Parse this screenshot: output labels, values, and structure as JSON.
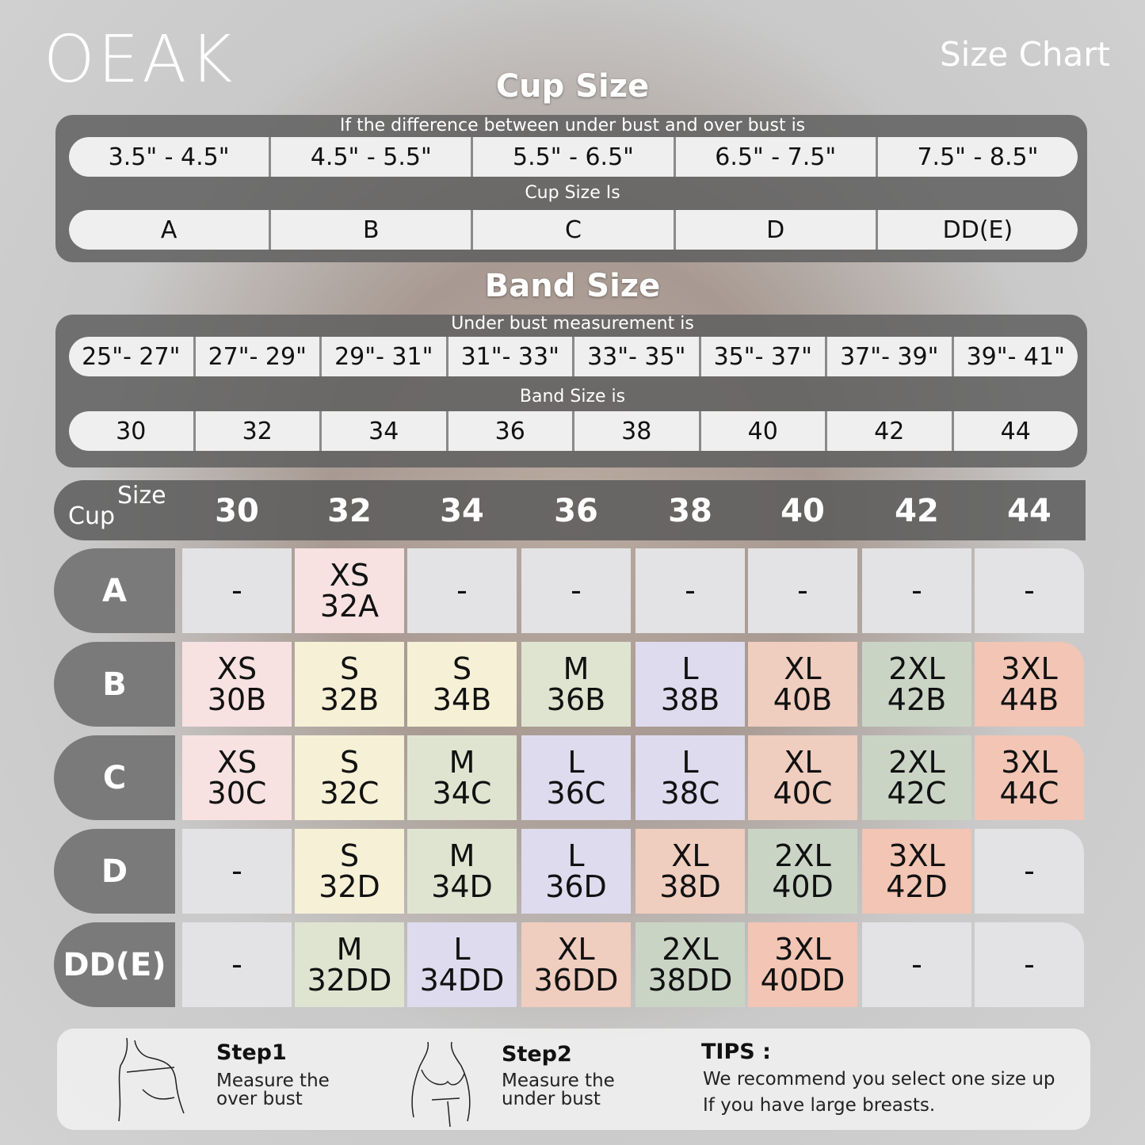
{
  "brand": "OEAK",
  "title": "Size Chart",
  "cup_section": {
    "heading": "Cup Size",
    "caption1": "If the  difference between under bust and over bust is",
    "differences": [
      "3.5\" -  4.5\"",
      "4.5\" -  5.5\"",
      "5.5\" -  6.5\"",
      "6.5\" -  7.5\"",
      "7.5\" -  8.5\""
    ],
    "caption2": "Cup Size Is",
    "cups": [
      "A",
      "B",
      "C",
      "D",
      "DD(E)"
    ]
  },
  "band_section": {
    "heading": "Band Size",
    "caption1": "Under bust measurement is",
    "measurements": [
      "25\"- 27\"",
      "27\"- 29\"",
      "29\"- 31\"",
      "31\"- 33\"",
      "33\"- 35\"",
      "35\"- 37\"",
      "37\"- 39\"",
      "39\"- 41\""
    ],
    "caption2": "Band Size is",
    "bands": [
      "30",
      "32",
      "34",
      "36",
      "38",
      "40",
      "42",
      "44"
    ]
  },
  "grid": {
    "corner_size": "Size",
    "corner_cup": "Cup",
    "columns": [
      "30",
      "32",
      "34",
      "36",
      "38",
      "40",
      "42",
      "44"
    ],
    "rows": [
      {
        "cup": "A",
        "cells": [
          [
            "-",
            ""
          ],
          [
            "XS",
            "32A"
          ],
          [
            "-",
            ""
          ],
          [
            "-",
            ""
          ],
          [
            "-",
            ""
          ],
          [
            "-",
            ""
          ],
          [
            "-",
            ""
          ],
          [
            "-",
            ""
          ]
        ]
      },
      {
        "cup": "B",
        "cells": [
          [
            "XS",
            "30B"
          ],
          [
            "S",
            "32B"
          ],
          [
            "S",
            "34B"
          ],
          [
            "M",
            "36B"
          ],
          [
            "L",
            "38B"
          ],
          [
            "XL",
            "40B"
          ],
          [
            "2XL",
            "42B"
          ],
          [
            "3XL",
            "44B"
          ]
        ]
      },
      {
        "cup": "C",
        "cells": [
          [
            "XS",
            "30C"
          ],
          [
            "S",
            "32C"
          ],
          [
            "M",
            "34C"
          ],
          [
            "L",
            "36C"
          ],
          [
            "L",
            "38C"
          ],
          [
            "XL",
            "40C"
          ],
          [
            "2XL",
            "42C"
          ],
          [
            "3XL",
            "44C"
          ]
        ]
      },
      {
        "cup": "D",
        "cells": [
          [
            "-",
            ""
          ],
          [
            "S",
            "32D"
          ],
          [
            "M",
            "34D"
          ],
          [
            "L",
            "36D"
          ],
          [
            "XL",
            "38D"
          ],
          [
            "2XL",
            "40D"
          ],
          [
            "3XL",
            "42D"
          ],
          [
            "-",
            ""
          ]
        ]
      },
      {
        "cup": "DD(E)",
        "cells": [
          [
            "-",
            ""
          ],
          [
            "M",
            "32DD"
          ],
          [
            "L",
            "34DD"
          ],
          [
            "XL",
            "36DD"
          ],
          [
            "2XL",
            "38DD"
          ],
          [
            "3XL",
            "40DD"
          ],
          [
            "-",
            ""
          ],
          [
            "-",
            ""
          ]
        ]
      }
    ]
  },
  "size_colors": {
    "-": "#e3e3e5",
    "XS": "#f7e2e1",
    "S": "#f6f0d6",
    "M": "#dfe4d1",
    "L": "#dedbee",
    "XL": "#efcdbf",
    "2XL": "#c9d4c5",
    "3XL": "#f2c5b4"
  },
  "tips_bar": {
    "step1_title": "Step1",
    "step1_l1": "Measure the",
    "step1_l2": "over bust",
    "step2_title": "Step2",
    "step2_l1": "Measure the",
    "step2_l2": "under bust",
    "tips_title": "TIPS :",
    "tips_l1": "We recommend you select one size up",
    "tips_l2": "If you have large breasts."
  }
}
